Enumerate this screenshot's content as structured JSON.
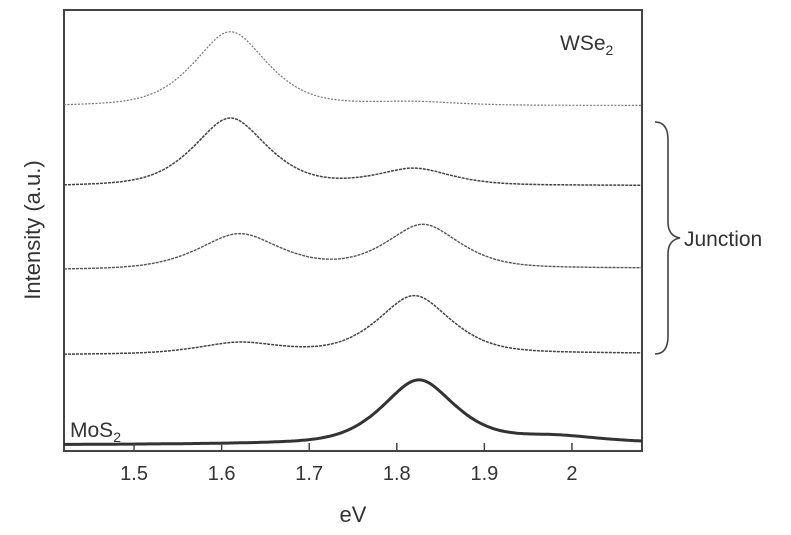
{
  "chart_data": {
    "type": "line",
    "xlabel": "eV",
    "ylabel": "Intensity (a.u.)",
    "xlim": [
      1.42,
      2.08
    ],
    "xticks": [
      "1.5",
      "1.6",
      "1.7",
      "1.8",
      "1.9",
      "2"
    ],
    "xtick_values": [
      1.5,
      1.6,
      1.7,
      1.8,
      1.9,
      2.0
    ],
    "yticks": [],
    "grid": false,
    "stacked_offset_plot": true,
    "annotations": [
      {
        "text": "WSe",
        "subscript": "2",
        "location": "top-right"
      },
      {
        "text": "MoS",
        "subscript": "2",
        "location": "bottom-left"
      },
      {
        "text": "Junction",
        "location": "right, brace spanning middle three traces"
      }
    ],
    "series": [
      {
        "name": "WSe2",
        "peaks": [
          {
            "center": 1.61,
            "height": 0.68,
            "width": 0.045
          },
          {
            "center": 1.82,
            "height": 0.03,
            "width": 0.05
          }
        ],
        "baseline": 0.02
      },
      {
        "name": "",
        "peaks": [
          {
            "center": 1.61,
            "height": 0.62,
            "width": 0.045
          },
          {
            "center": 1.82,
            "height": 0.15,
            "width": 0.045
          }
        ],
        "baseline": 0.02
      },
      {
        "name": "",
        "peaks": [
          {
            "center": 1.62,
            "height": 0.32,
            "width": 0.05
          },
          {
            "center": 1.83,
            "height": 0.4,
            "width": 0.045
          }
        ],
        "baseline": 0.03
      },
      {
        "name": "",
        "peaks": [
          {
            "center": 1.62,
            "height": 0.1,
            "width": 0.05
          },
          {
            "center": 1.82,
            "height": 0.53,
            "width": 0.045
          }
        ],
        "baseline": 0.02
      },
      {
        "name": "MoS2",
        "peaks": [
          {
            "center": 1.825,
            "height": 0.58,
            "width": 0.045
          },
          {
            "center": 1.98,
            "height": 0.06,
            "width": 0.06
          }
        ],
        "baseline": 0.02
      }
    ]
  }
}
